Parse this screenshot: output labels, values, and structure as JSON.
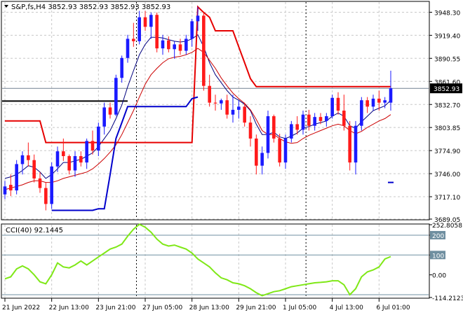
{
  "chart_data": [
    {
      "type": "candlestick",
      "title": "S&P,fs,H4  3852.93 3852.93 3852.93 3852.93",
      "ylim": [
        3689.05,
        3961.0
      ],
      "y_ticks": [
        "3948.30",
        "3919.40",
        "3890.55",
        "3861.60",
        "3832.70",
        "3803.85",
        "3774.90",
        "3746.00",
        "3717.10",
        "3689.05"
      ],
      "y_tick_values": [
        3948.3,
        3919.4,
        3890.55,
        3861.6,
        3832.7,
        3803.85,
        3774.9,
        3746.0,
        3717.1,
        3689.05
      ],
      "current_price_label": "3852.93",
      "current_price": 3852.93,
      "x_labels": [
        "21 Jun 2022",
        "22 Jun 13:00",
        "23 Jun 21:00",
        "27 Jun 05:00",
        "28 Jun 13:00",
        "29 Jun 21:00",
        "1 Jul 05:00",
        "4 Jul 13:00",
        "6 Jul 01:00"
      ],
      "x_label_bars": [
        0,
        8,
        16,
        24,
        32,
        40,
        48,
        56,
        64
      ],
      "vertical_markers_bars": [
        23,
        52
      ],
      "bull_color": "#1a1aff",
      "bear_color": "#ff1a1a",
      "candles": [
        [
          3720,
          3737,
          3714,
          3730
        ],
        [
          3732,
          3745,
          3718,
          3725
        ],
        [
          3725,
          3763,
          3720,
          3758
        ],
        [
          3758,
          3774,
          3745,
          3769
        ],
        [
          3769,
          3785,
          3755,
          3763
        ],
        [
          3763,
          3770,
          3735,
          3740
        ],
        [
          3740,
          3748,
          3722,
          3728
        ],
        [
          3728,
          3735,
          3700,
          3708
        ],
        [
          3708,
          3760,
          3702,
          3755
        ],
        [
          3755,
          3780,
          3748,
          3774
        ],
        [
          3774,
          3790,
          3762,
          3768
        ],
        [
          3768,
          3770,
          3745,
          3750
        ],
        [
          3750,
          3774,
          3742,
          3768
        ],
        [
          3768,
          3774,
          3755,
          3760
        ],
        [
          3760,
          3790,
          3752,
          3787
        ],
        [
          3787,
          3800,
          3770,
          3775
        ],
        [
          3775,
          3810,
          3768,
          3805
        ],
        [
          3805,
          3835,
          3795,
          3829
        ],
        [
          3829,
          3835,
          3815,
          3820
        ],
        [
          3820,
          3870,
          3818,
          3866
        ],
        [
          3866,
          3894,
          3860,
          3891
        ],
        [
          3891,
          3920,
          3885,
          3915
        ],
        [
          3915,
          3935,
          3905,
          3912
        ],
        [
          3912,
          3950,
          3908,
          3942
        ],
        [
          3942,
          3950,
          3925,
          3930
        ],
        [
          3930,
          3948,
          3915,
          3945
        ],
        [
          3945,
          3948,
          3898,
          3903
        ],
        [
          3903,
          3920,
          3895,
          3913
        ],
        [
          3913,
          3918,
          3898,
          3902
        ],
        [
          3902,
          3912,
          3890,
          3908
        ],
        [
          3908,
          3915,
          3895,
          3900
        ],
        [
          3900,
          3920,
          3895,
          3915
        ],
        [
          3915,
          3940,
          3905,
          3937
        ],
        [
          3937,
          3955,
          3925,
          3944
        ],
        [
          3944,
          3948,
          3850,
          3856
        ],
        [
          3856,
          3870,
          3830,
          3835
        ],
        [
          3835,
          3845,
          3825,
          3834
        ],
        [
          3834,
          3840,
          3826,
          3838
        ],
        [
          3838,
          3845,
          3815,
          3820
        ],
        [
          3820,
          3845,
          3810,
          3826
        ],
        [
          3826,
          3838,
          3815,
          3830
        ],
        [
          3830,
          3835,
          3805,
          3810
        ],
        [
          3810,
          3818,
          3780,
          3790
        ],
        [
          3790,
          3795,
          3745,
          3756
        ],
        [
          3756,
          3780,
          3745,
          3772
        ],
        [
          3772,
          3825,
          3765,
          3818
        ],
        [
          3818,
          3820,
          3785,
          3790
        ],
        [
          3790,
          3796,
          3755,
          3760
        ],
        [
          3760,
          3795,
          3752,
          3790
        ],
        [
          3790,
          3812,
          3785,
          3808
        ],
        [
          3808,
          3818,
          3795,
          3801
        ],
        [
          3801,
          3825,
          3795,
          3820
        ],
        [
          3820,
          3826,
          3800,
          3806
        ],
        [
          3806,
          3822,
          3800,
          3817
        ],
        [
          3817,
          3822,
          3808,
          3812
        ],
        [
          3812,
          3822,
          3805,
          3818
        ],
        [
          3818,
          3845,
          3815,
          3841
        ],
        [
          3841,
          3848,
          3820,
          3825
        ],
        [
          3825,
          3845,
          3800,
          3806
        ],
        [
          3806,
          3812,
          3750,
          3760
        ],
        [
          3760,
          3812,
          3745,
          3806
        ],
        [
          3806,
          3842,
          3800,
          3838
        ],
        [
          3838,
          3842,
          3822,
          3830
        ],
        [
          3830,
          3845,
          3825,
          3840
        ],
        [
          3840,
          3850,
          3825,
          3835
        ],
        [
          3835,
          3842,
          3828,
          3838
        ],
        [
          3835,
          3875,
          3825,
          3853
        ]
      ],
      "series": [
        {
          "role": "fast-ma",
          "color": "#00007f",
          "values": [
            3740,
            3742,
            3745,
            3750,
            3756,
            3754,
            3748,
            3740,
            3745,
            3752,
            3760,
            3760,
            3762,
            3764,
            3768,
            3772,
            3780,
            3790,
            3800,
            3815,
            3832,
            3855,
            3875,
            3895,
            3908,
            3917,
            3917,
            3916,
            3914,
            3912,
            3911,
            3912,
            3915,
            3920,
            3905,
            3885,
            3870,
            3860,
            3850,
            3842,
            3838,
            3833,
            3825,
            3808,
            3795,
            3795,
            3798,
            3792,
            3790,
            3793,
            3797,
            3803,
            3805,
            3808,
            3810,
            3812,
            3818,
            3822,
            3818,
            3806,
            3803,
            3811,
            3818,
            3825,
            3828,
            3831,
            3838
          ]
        },
        {
          "role": "slow-ma",
          "color": "#cc0000",
          "values": [
            3726,
            3728,
            3730,
            3732,
            3735,
            3737,
            3737,
            3735,
            3735,
            3737,
            3740,
            3742,
            3744,
            3746,
            3748,
            3752,
            3758,
            3765,
            3773,
            3782,
            3795,
            3810,
            3825,
            3842,
            3858,
            3870,
            3878,
            3885,
            3890,
            3892,
            3893,
            3895,
            3898,
            3903,
            3898,
            3888,
            3878,
            3866,
            3856,
            3847,
            3840,
            3834,
            3826,
            3814,
            3800,
            3795,
            3795,
            3790,
            3786,
            3784,
            3785,
            3790,
            3794,
            3797,
            3800,
            3803,
            3806,
            3808,
            3806,
            3800,
            3796,
            3799,
            3804,
            3808,
            3812,
            3815,
            3820
          ]
        },
        {
          "role": "upper-channel",
          "color": "#e60000",
          "values": [
            3812,
            3812,
            3812,
            3812,
            3812,
            3812,
            3812,
            3785,
            3785,
            3785,
            3785,
            3785,
            3785,
            3785,
            3785,
            3785,
            3785,
            3785,
            3785,
            3785,
            3785,
            3785,
            3785,
            3785,
            3785,
            3785,
            3785,
            3785,
            3785,
            3785,
            3785,
            3785,
            3785,
            3955,
            3948,
            3942,
            3925,
            3925,
            3925,
            3925,
            3905,
            3885,
            3865,
            3855,
            3855,
            3855,
            3855,
            3855,
            3855,
            3855,
            3855,
            3855,
            3855,
            3855,
            3855,
            3855,
            3855,
            3855,
            3855,
            3855,
            3855,
            3855,
            3855,
            3855,
            3855,
            3855,
            3855
          ]
        },
        {
          "role": "lower-channel",
          "color": "#0000cc",
          "values": [
            null,
            null,
            null,
            null,
            null,
            null,
            null,
            null,
            3700,
            3700,
            3700,
            3700,
            3700,
            3700,
            3700,
            3700,
            3702,
            3702,
            3745,
            3790,
            3810,
            3830,
            3830,
            3830,
            3830,
            3830,
            3830,
            3830,
            3830,
            3830,
            3830,
            3830,
            3840,
            3842,
            null,
            null,
            null,
            null,
            null,
            null,
            null,
            null,
            null,
            null,
            null,
            null,
            null,
            null,
            null,
            null,
            null,
            null,
            null,
            null,
            null,
            null,
            null,
            null,
            null,
            null,
            null,
            null,
            null,
            null,
            null,
            null,
            null
          ]
        }
      ],
      "horizontal_lines": [
        {
          "role": "support",
          "color": "#000000",
          "value": 3837,
          "from_bar": 0,
          "to_bar": 21
        },
        {
          "role": "last-price",
          "color": "#708090",
          "value": 3852.93,
          "from_bar": 0,
          "to_bar": 66
        }
      ],
      "marks": [
        {
          "role": "dash",
          "color": "#0000cc",
          "bar": 66,
          "value": 3735
        }
      ]
    },
    {
      "type": "line",
      "title": "CCI(40) 92.1445",
      "ylim": [
        -114.2123,
        252.8058
      ],
      "y_ticks": [
        "252.8058",
        "200",
        "100",
        "0.00",
        "-114.2123"
      ],
      "y_tick_values": [
        252.8058,
        200,
        100,
        0,
        -114.2123
      ],
      "levels": [
        200,
        100,
        -100
      ],
      "series": [
        {
          "name": "CCI(40)",
          "color": "#7fe817",
          "values": [
            -20,
            -10,
            30,
            45,
            30,
            0,
            -35,
            -45,
            0,
            60,
            40,
            35,
            50,
            70,
            50,
            70,
            90,
            110,
            130,
            140,
            155,
            195,
            230,
            255,
            240,
            215,
            180,
            155,
            145,
            150,
            140,
            130,
            110,
            80,
            60,
            40,
            10,
            -15,
            -25,
            -40,
            -45,
            -55,
            -70,
            -90,
            -105,
            -95,
            -85,
            -80,
            -70,
            -60,
            -55,
            -50,
            -45,
            -40,
            -38,
            -35,
            -30,
            -30,
            -50,
            -100,
            -70,
            -10,
            15,
            25,
            40,
            80,
            92.1445
          ]
        }
      ]
    }
  ]
}
